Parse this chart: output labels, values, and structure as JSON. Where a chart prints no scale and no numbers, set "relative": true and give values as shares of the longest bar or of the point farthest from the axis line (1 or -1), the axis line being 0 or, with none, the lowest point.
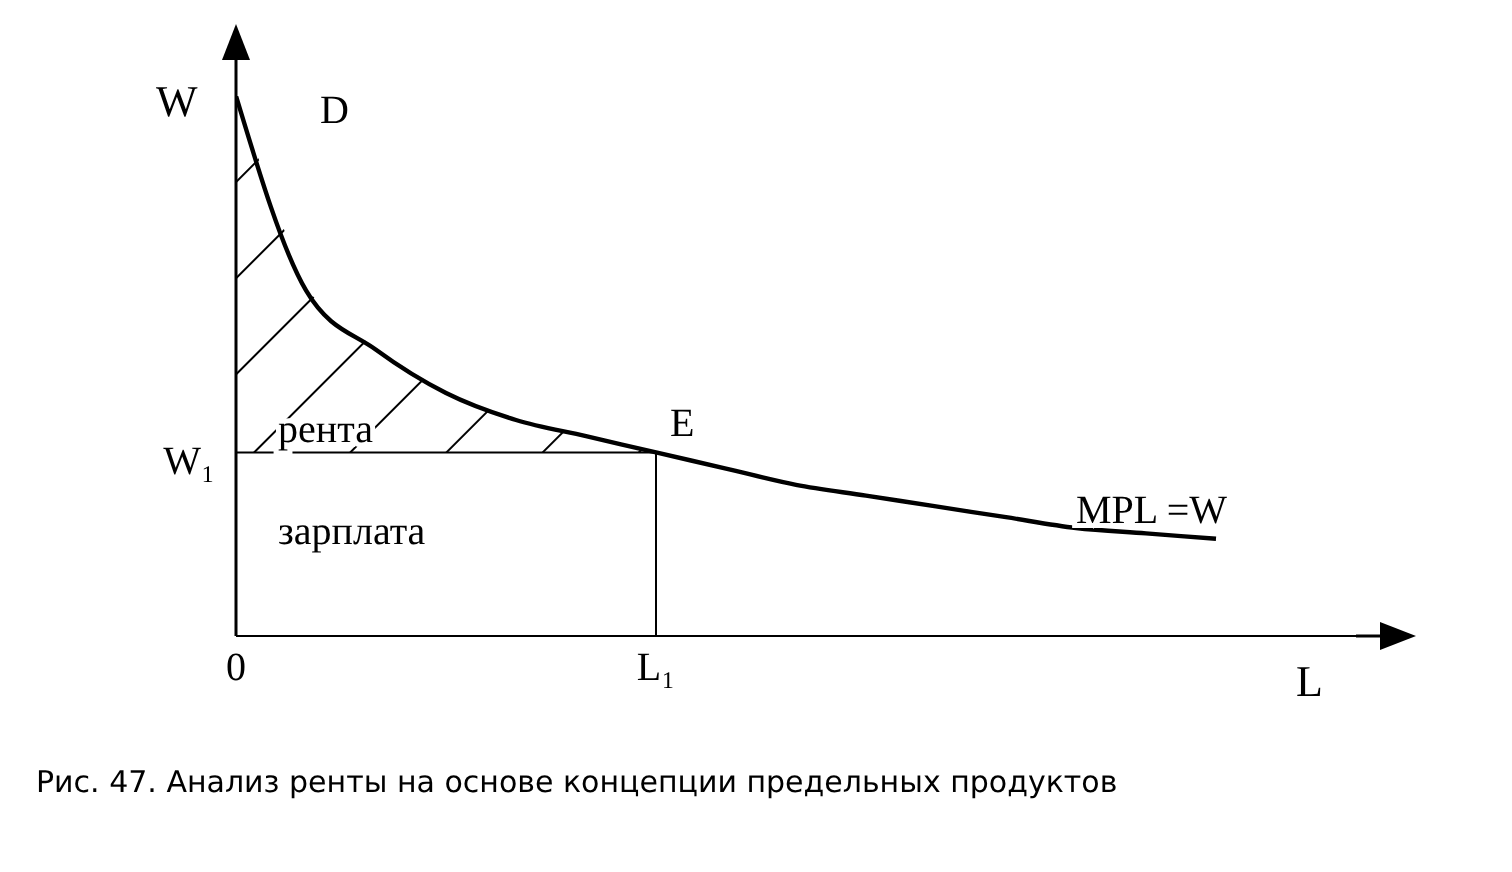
{
  "chart_data": {
    "type": "line",
    "relative": true,
    "xlabel": "L",
    "ylabel": "W",
    "categories": [
      "0",
      null,
      null,
      null,
      null,
      null,
      "L₁",
      null,
      null,
      null,
      null,
      null,
      null,
      null,
      null,
      null,
      null
    ],
    "series": [
      {
        "color": "#000000",
        "values": [
          1,
          0.64,
          0.53,
          0.45,
          0.4,
          0.37,
          0.34,
          0.31,
          0.28,
          0.26,
          0.24,
          0.22,
          0.2,
          0.19,
          0.18,
          null,
          null
        ]
      },
      {
        "type": "step",
        "color": "#000000",
        "values": [
          0.34,
          0.34,
          0.34,
          0.34,
          0.34,
          0.34,
          0,
          null,
          null,
          null,
          null,
          null,
          null,
          null,
          null,
          null,
          null
        ]
      }
    ],
    "annotations": [
      "D",
      "W₁",
      "рента",
      "E",
      "зарплата",
      "MPL =W",
      "Рис. 47. Анализ ренты на основе концепции предельных продуктов"
    ],
    "grid": false,
    "marker": "none",
    "line_style": "solid"
  }
}
